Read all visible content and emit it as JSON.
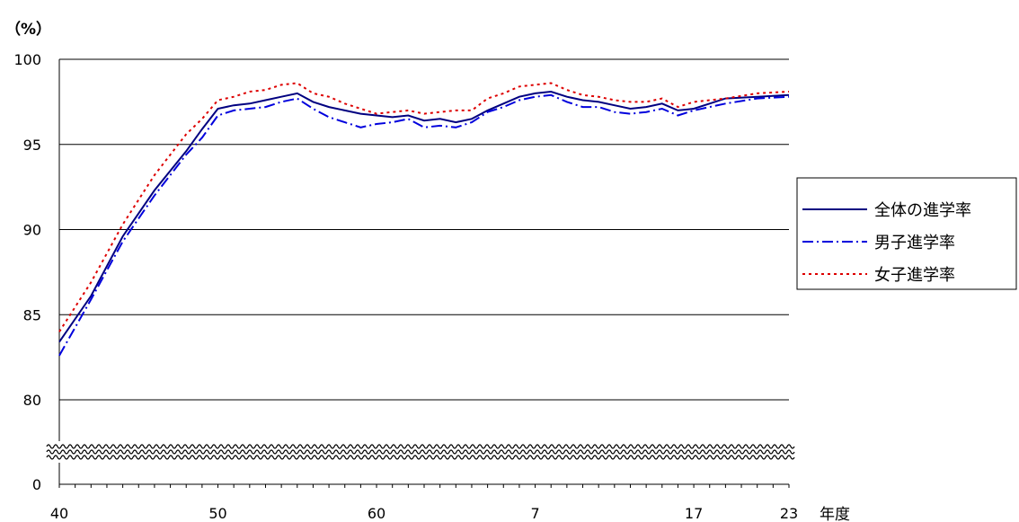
{
  "chart_data": {
    "type": "line",
    "title": "",
    "y_unit": "（%）",
    "x_unit": "年度",
    "ylim": [
      80,
      100
    ],
    "y_ticks": [
      "100",
      "95",
      "90",
      "85",
      "80",
      "0"
    ],
    "axis_break": "wavy break between 0 and 80",
    "x_tick_labels": [
      "40",
      "50",
      "60",
      "7",
      "17",
      "23"
    ],
    "x_tick_positions": [
      0,
      10,
      20,
      30,
      40,
      46
    ],
    "grid": "horizontal",
    "legend_position": "right",
    "series": [
      {
        "name": "全体の進学率",
        "color": "#000080",
        "style": "solid",
        "values": [
          83.4,
          86.1,
          89.6,
          92.3,
          94.6,
          95.9,
          97.1,
          97.3,
          97.4,
          97.6,
          97.8,
          98.0,
          97.5,
          97.2,
          97.0,
          96.8,
          96.7,
          96.6,
          96.7,
          96.4,
          96.5,
          96.3,
          96.5,
          97.0,
          97.4,
          97.8,
          98.0,
          98.1,
          97.8,
          97.6,
          97.5,
          97.3,
          97.1,
          97.2,
          97.4,
          97.0,
          97.1,
          97.4,
          97.7,
          97.8,
          97.9
        ],
        "x_index": [
          0,
          2,
          4,
          6,
          8,
          9,
          10,
          11,
          12,
          13,
          14,
          15,
          16,
          17,
          18,
          19,
          20,
          21,
          22,
          23,
          24,
          25,
          26,
          27,
          28,
          29,
          30,
          31,
          32,
          33,
          34,
          35,
          36,
          37,
          38,
          39,
          40,
          41,
          42,
          44,
          46
        ]
      },
      {
        "name": "男子進学率",
        "color": "#0000dd",
        "style": "dashdot",
        "values": [
          82.6,
          85.9,
          89.3,
          92.0,
          94.4,
          95.4,
          96.7,
          97.0,
          97.1,
          97.2,
          97.5,
          97.7,
          97.1,
          96.6,
          96.3,
          96.0,
          96.2,
          96.3,
          96.5,
          96.0,
          96.1,
          96.0,
          96.3,
          96.9,
          97.2,
          97.6,
          97.8,
          97.9,
          97.5,
          97.2,
          97.2,
          96.9,
          96.8,
          96.9,
          97.1,
          96.7,
          97.0,
          97.2,
          97.4,
          97.7,
          97.8
        ],
        "x_index": [
          0,
          2,
          4,
          6,
          8,
          9,
          10,
          11,
          12,
          13,
          14,
          15,
          16,
          17,
          18,
          19,
          20,
          21,
          22,
          23,
          24,
          25,
          26,
          27,
          28,
          29,
          30,
          31,
          32,
          33,
          34,
          35,
          36,
          37,
          38,
          39,
          40,
          41,
          42,
          44,
          46
        ]
      },
      {
        "name": "女子進学率",
        "color": "#dd0000",
        "style": "dotted",
        "values": [
          84.0,
          86.9,
          90.3,
          93.2,
          95.6,
          96.5,
          97.6,
          97.8,
          98.1,
          98.2,
          98.5,
          98.6,
          98.0,
          97.8,
          97.4,
          97.1,
          96.8,
          96.9,
          97.0,
          96.8,
          96.9,
          97.0,
          97.0,
          97.7,
          98.0,
          98.4,
          98.5,
          98.6,
          98.2,
          97.9,
          97.8,
          97.6,
          97.5,
          97.5,
          97.7,
          97.2,
          97.5,
          97.6,
          97.7,
          98.0,
          98.1
        ],
        "x_index": [
          0,
          2,
          4,
          6,
          8,
          9,
          10,
          11,
          12,
          13,
          14,
          15,
          16,
          17,
          18,
          19,
          20,
          21,
          22,
          23,
          24,
          25,
          26,
          27,
          28,
          29,
          30,
          31,
          32,
          33,
          34,
          35,
          36,
          37,
          38,
          39,
          40,
          41,
          42,
          44,
          46
        ]
      }
    ]
  }
}
